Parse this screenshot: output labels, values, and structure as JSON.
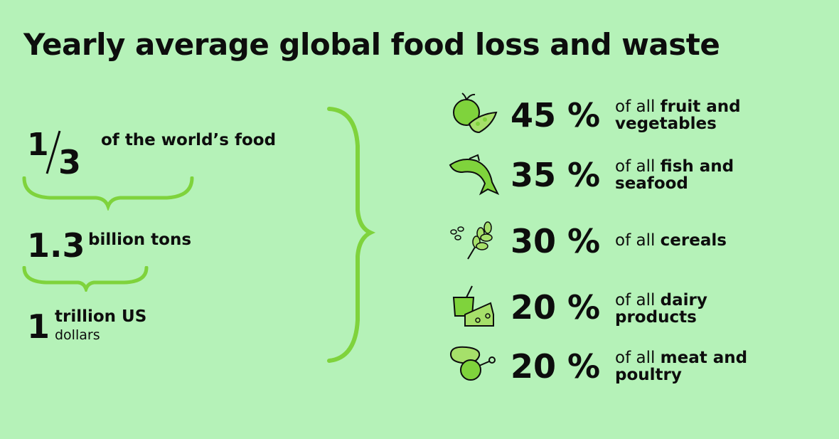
{
  "title": "Yearly average global food loss and waste",
  "summary": {
    "fraction": {
      "numerator": "1",
      "denominator": "3",
      "label": "of the world’s food"
    },
    "tons": {
      "value": "1.3",
      "label": "billion tons"
    },
    "dollars": {
      "value": "1",
      "label_line1": "trillion US",
      "label_line2": "dollars"
    }
  },
  "categories": [
    {
      "icon": "fruit-vegetables-icon",
      "percent": "45 %",
      "prefix": "of all ",
      "bold1": "fruit and",
      "line2": "vegetables"
    },
    {
      "icon": "fish-icon",
      "percent": "35 %",
      "prefix": "of all ",
      "bold1": "fish and",
      "line2": "seafood"
    },
    {
      "icon": "cereals-icon",
      "percent": "30 %",
      "prefix": "of all ",
      "bold1": "cereals",
      "line2": ""
    },
    {
      "icon": "dairy-icon",
      "percent": "20 %",
      "prefix": "of all ",
      "bold1": "dairy",
      "line2": "products"
    },
    {
      "icon": "meat-poultry-icon",
      "percent": "20 %",
      "prefix": "of all ",
      "bold1": "meat and",
      "line2": "poultry"
    }
  ],
  "colors": {
    "background": "#b5f2b8",
    "accent": "#7fd33c",
    "text": "#0d0d0d"
  }
}
